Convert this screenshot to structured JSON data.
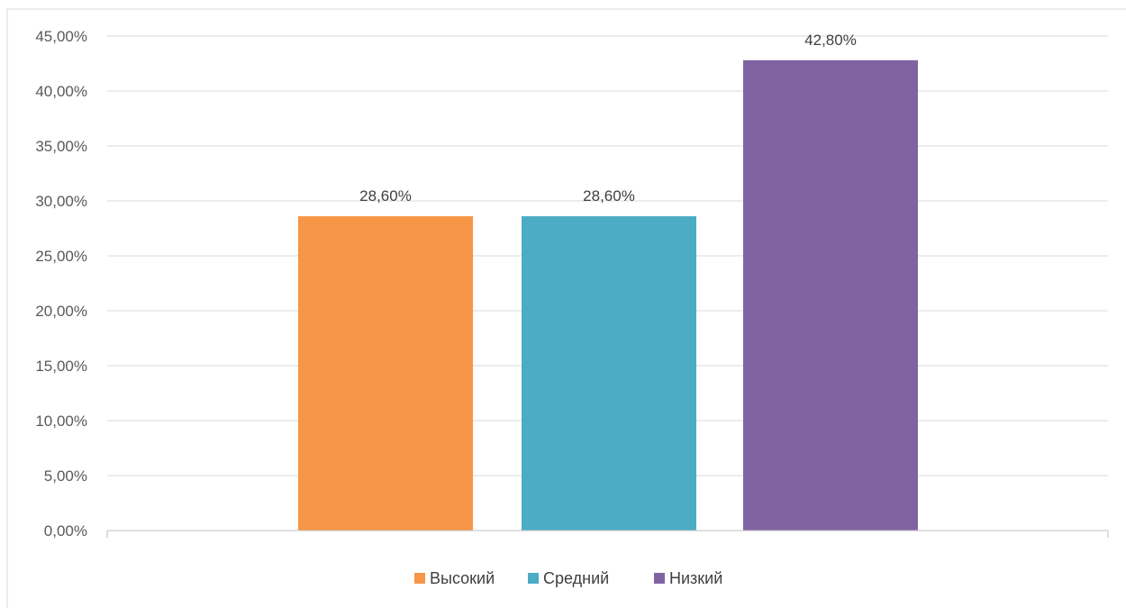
{
  "chart_data": {
    "type": "bar",
    "categories": [
      "Высокий",
      "Средний",
      "Низкий"
    ],
    "values": [
      28.6,
      28.6,
      42.8
    ],
    "data_labels": [
      "28,60%",
      "28,60%",
      "42,80%"
    ],
    "ylim": [
      0,
      45
    ],
    "y_ticks": [
      0,
      5,
      10,
      15,
      20,
      25,
      30,
      35,
      40,
      45
    ],
    "y_tick_labels": [
      "0,00%",
      "5,00%",
      "10,00%",
      "15,00%",
      "20,00%",
      "25,00%",
      "30,00%",
      "35,00%",
      "40,00%",
      "45,00%"
    ],
    "colors": [
      "#F79646",
      "#4BACC6",
      "#8064A2"
    ],
    "grid": true,
    "legend_position": "bottom",
    "title": "",
    "xlabel": "",
    "ylabel": ""
  },
  "theme": {
    "grid_color": "#D9D9D9",
    "axis_color": "#BFBFBF",
    "border_color": "#D9D9D9"
  }
}
